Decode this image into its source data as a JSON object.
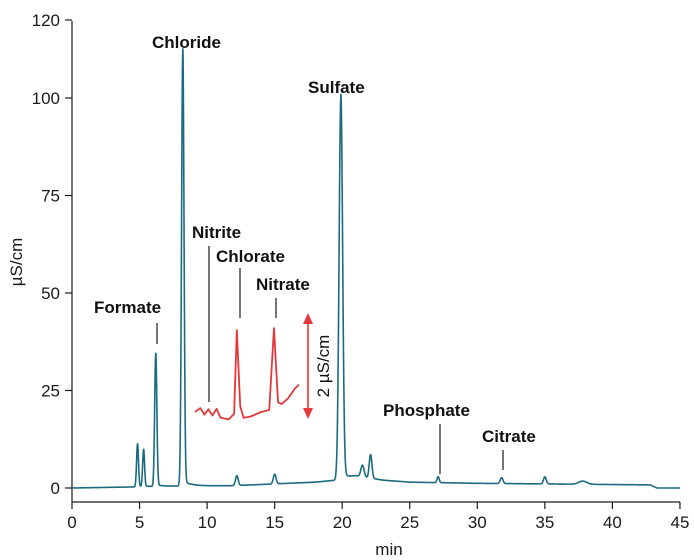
{
  "chart_data": {
    "type": "line",
    "xlabel": "min",
    "ylabel": "µS/cm",
    "xlim": [
      0,
      45
    ],
    "ylim": [
      -3,
      120
    ],
    "xticks": [
      0,
      5,
      10,
      15,
      20,
      25,
      30,
      35,
      40,
      45
    ],
    "yticks": [
      0,
      25,
      50,
      75,
      100,
      120
    ],
    "grid": false,
    "series": [
      {
        "color": "#1b6b80",
        "peaks": [
          {
            "x": 4.85,
            "y": 11,
            "w": 0.07
          },
          {
            "x": 5.3,
            "y": 9.5,
            "w": 0.07
          },
          {
            "x": 6.2,
            "y": 34,
            "w": 0.08
          },
          {
            "x": 8.2,
            "y": 111.5,
            "w": 0.09
          },
          {
            "x": 12.2,
            "y": 2.5,
            "w": 0.1
          },
          {
            "x": 15.0,
            "y": 2.5,
            "w": 0.1
          },
          {
            "x": 19.9,
            "y": 97.5,
            "w": 0.13
          },
          {
            "x": 21.5,
            "y": 3,
            "w": 0.12
          },
          {
            "x": 22.1,
            "y": 6,
            "w": 0.1
          },
          {
            "x": 27.1,
            "y": 1.5,
            "w": 0.08
          },
          {
            "x": 31.8,
            "y": 1.5,
            "w": 0.1
          },
          {
            "x": 35.0,
            "y": 1.8,
            "w": 0.1
          },
          {
            "x": 37.8,
            "y": 0.8,
            "w": 0.3
          }
        ],
        "baseline": [
          [
            0,
            0
          ],
          [
            5,
            0.3
          ],
          [
            8.5,
            0.5
          ],
          [
            12,
            0.6
          ],
          [
            18,
            1.5
          ],
          [
            19.5,
            2
          ],
          [
            21,
            3
          ],
          [
            23,
            2
          ],
          [
            25,
            1.5
          ],
          [
            30,
            1.2
          ],
          [
            42.8,
            0.8
          ],
          [
            43.3,
            0
          ],
          [
            45,
            0
          ]
        ]
      },
      {
        "color": "#e5373b",
        "scale": "2 µS/cm",
        "points": [
          [
            9.1,
            19.5
          ],
          [
            9.5,
            20.5
          ],
          [
            9.8,
            18.8
          ],
          [
            10.1,
            20.2
          ],
          [
            10.4,
            18.6
          ],
          [
            10.7,
            20.3
          ],
          [
            11.0,
            18.0
          ],
          [
            11.6,
            17.6
          ],
          [
            12.0,
            19.0
          ],
          [
            12.2,
            40.5
          ],
          [
            12.45,
            21.0
          ],
          [
            12.7,
            18.0
          ],
          [
            13.2,
            18.3
          ],
          [
            14.0,
            19.5
          ],
          [
            14.6,
            20.0
          ],
          [
            14.95,
            41.0
          ],
          [
            15.25,
            22.0
          ],
          [
            15.5,
            21.5
          ],
          [
            16.0,
            23.0
          ],
          [
            16.5,
            25.5
          ],
          [
            16.8,
            26.5
          ]
        ]
      }
    ],
    "annotations": [
      {
        "text": "Formate",
        "x": 6.2
      },
      {
        "text": "Chloride",
        "x": 8.2
      },
      {
        "text": "Nitrite",
        "x": 10.0
      },
      {
        "text": "Chlorate",
        "x": 12.2
      },
      {
        "text": "Nitrate",
        "x": 15.0
      },
      {
        "text": "Sulfate",
        "x": 19.9
      },
      {
        "text": "Phosphate",
        "x": 27.1
      },
      {
        "text": "Citrate",
        "x": 31.8
      }
    ]
  }
}
